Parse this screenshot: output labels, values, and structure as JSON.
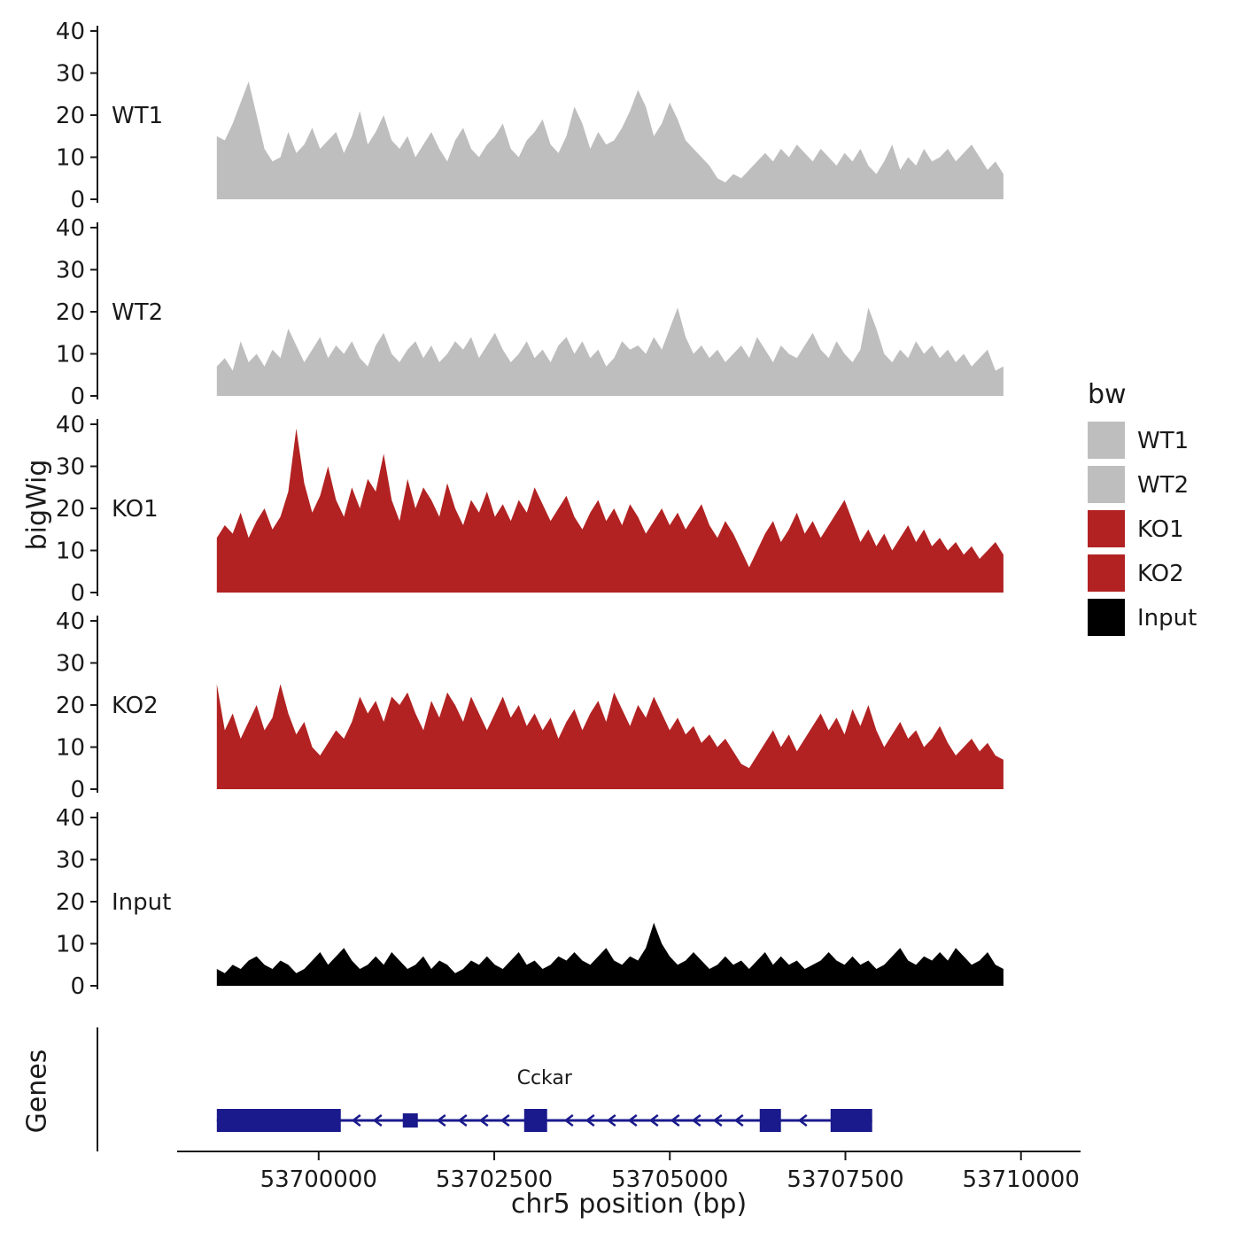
{
  "labels": {
    "y_axis": "bigWig",
    "genes_axis": "Genes",
    "x_axis": "chr5 position (bp)"
  },
  "legend": {
    "title": "bw",
    "entries": [
      {
        "label": "WT1",
        "color": "#bebebe"
      },
      {
        "label": "WT2",
        "color": "#bebebe"
      },
      {
        "label": "KO1",
        "color": "#b22222"
      },
      {
        "label": "KO2",
        "color": "#b22222"
      },
      {
        "label": "Input",
        "color": "#000000"
      }
    ]
  },
  "chart_data": {
    "type": "area",
    "title": "",
    "xlabel": "chr5 position (bp)",
    "ylabel": "bigWig",
    "legend_position": "right",
    "grid": false,
    "x_axis": {
      "range": [
        53696850,
        53710470
      ],
      "ticks": [
        53700000,
        53702500,
        53705000,
        53707500,
        53710000
      ],
      "tick_labels": [
        "53700000",
        "53702500",
        "53705000",
        "53707500",
        "53710000"
      ]
    },
    "y_axis": {
      "range": [
        0,
        40
      ],
      "ticks": [
        0,
        10,
        20,
        30,
        40
      ]
    },
    "data_x_range": [
      53698550,
      53709750
    ],
    "tracks": [
      {
        "name": "WT1",
        "color": "#bebebe",
        "values": [
          15,
          14,
          18,
          23,
          28,
          20,
          12,
          9,
          10,
          16,
          11,
          13,
          17,
          12,
          14,
          16,
          11,
          15,
          21,
          13,
          16,
          20,
          14,
          12,
          15,
          10,
          13,
          16,
          12,
          9,
          14,
          17,
          12,
          10,
          13,
          15,
          18,
          12,
          10,
          14,
          16,
          19,
          13,
          11,
          15,
          22,
          18,
          12,
          16,
          13,
          14,
          17,
          21,
          26,
          22,
          15,
          18,
          23,
          19,
          14,
          12,
          10,
          8,
          5,
          4,
          6,
          5,
          7,
          9,
          11,
          9,
          12,
          10,
          13,
          11,
          9,
          12,
          10,
          8,
          11,
          9,
          12,
          8,
          6,
          9,
          13,
          7,
          10,
          8,
          12,
          9,
          10,
          12,
          9,
          11,
          13,
          10,
          7,
          9,
          6
        ]
      },
      {
        "name": "WT2",
        "color": "#bebebe",
        "values": [
          7,
          9,
          6,
          13,
          8,
          10,
          7,
          11,
          9,
          16,
          12,
          8,
          11,
          14,
          9,
          12,
          10,
          13,
          9,
          7,
          12,
          15,
          10,
          8,
          11,
          13,
          9,
          12,
          8,
          10,
          13,
          11,
          14,
          9,
          12,
          15,
          11,
          8,
          10,
          13,
          9,
          11,
          8,
          12,
          14,
          10,
          13,
          9,
          11,
          7,
          9,
          13,
          11,
          12,
          10,
          14,
          11,
          16,
          21,
          14,
          10,
          12,
          9,
          11,
          8,
          10,
          12,
          9,
          14,
          11,
          8,
          12,
          10,
          9,
          12,
          15,
          11,
          9,
          13,
          10,
          8,
          11,
          21,
          16,
          10,
          8,
          11,
          9,
          13,
          10,
          12,
          9,
          11,
          8,
          10,
          7,
          9,
          11,
          6,
          7
        ]
      },
      {
        "name": "KO1",
        "color": "#b22222",
        "values": [
          13,
          16,
          14,
          19,
          13,
          17,
          20,
          15,
          18,
          24,
          39,
          26,
          19,
          23,
          30,
          22,
          18,
          25,
          20,
          27,
          24,
          33,
          22,
          17,
          27,
          20,
          25,
          22,
          18,
          26,
          20,
          16,
          22,
          19,
          24,
          18,
          21,
          17,
          22,
          19,
          25,
          21,
          17,
          20,
          23,
          18,
          15,
          19,
          22,
          17,
          20,
          16,
          21,
          18,
          14,
          17,
          20,
          16,
          19,
          15,
          18,
          21,
          16,
          13,
          17,
          14,
          10,
          6,
          10,
          14,
          17,
          12,
          15,
          19,
          14,
          17,
          13,
          16,
          19,
          22,
          17,
          12,
          15,
          11,
          14,
          10,
          13,
          16,
          12,
          15,
          11,
          13,
          10,
          12,
          9,
          11,
          8,
          10,
          12,
          9
        ]
      },
      {
        "name": "KO2",
        "color": "#b22222",
        "values": [
          25,
          14,
          18,
          12,
          16,
          20,
          14,
          17,
          25,
          18,
          13,
          16,
          10,
          8,
          11,
          14,
          12,
          16,
          22,
          18,
          21,
          16,
          22,
          20,
          23,
          18,
          14,
          21,
          17,
          23,
          20,
          16,
          22,
          18,
          14,
          18,
          22,
          17,
          20,
          15,
          18,
          14,
          17,
          12,
          16,
          19,
          14,
          18,
          21,
          16,
          23,
          19,
          15,
          20,
          17,
          22,
          18,
          14,
          17,
          13,
          15,
          11,
          13,
          10,
          12,
          9,
          6,
          5,
          8,
          11,
          14,
          10,
          13,
          9,
          12,
          15,
          18,
          14,
          17,
          13,
          19,
          15,
          20,
          14,
          10,
          13,
          16,
          12,
          14,
          10,
          12,
          15,
          11,
          8,
          10,
          12,
          9,
          11,
          8,
          7
        ]
      },
      {
        "name": "Input",
        "color": "#000000",
        "values": [
          4,
          3,
          5,
          4,
          6,
          7,
          5,
          4,
          6,
          5,
          3,
          4,
          6,
          8,
          5,
          7,
          9,
          6,
          4,
          5,
          7,
          5,
          8,
          6,
          4,
          5,
          7,
          4,
          6,
          5,
          3,
          4,
          6,
          5,
          7,
          5,
          4,
          6,
          8,
          5,
          6,
          4,
          5,
          7,
          6,
          8,
          6,
          5,
          7,
          9,
          6,
          5,
          7,
          6,
          9,
          15,
          10,
          7,
          5,
          6,
          8,
          6,
          4,
          5,
          7,
          5,
          6,
          4,
          6,
          8,
          5,
          7,
          5,
          6,
          4,
          5,
          6,
          8,
          6,
          5,
          7,
          5,
          6,
          4,
          5,
          7,
          9,
          6,
          5,
          7,
          6,
          8,
          6,
          9,
          7,
          5,
          6,
          8,
          5,
          4
        ]
      }
    ],
    "gene_track": {
      "label": "Genes",
      "gene": {
        "name": "Cckar",
        "strand": "-",
        "color": "#1a1a8c",
        "start": 53698550,
        "end": 53707881,
        "exons": [
          {
            "start": 53698550,
            "end": 53700315,
            "height": "tall"
          },
          {
            "start": 53701198,
            "end": 53701412,
            "height": "short"
          },
          {
            "start": 53702926,
            "end": 53703253,
            "height": "tall"
          },
          {
            "start": 53706280,
            "end": 53706582,
            "height": "tall"
          },
          {
            "start": 53707289,
            "end": 53707881,
            "height": "tall"
          }
        ]
      }
    }
  }
}
